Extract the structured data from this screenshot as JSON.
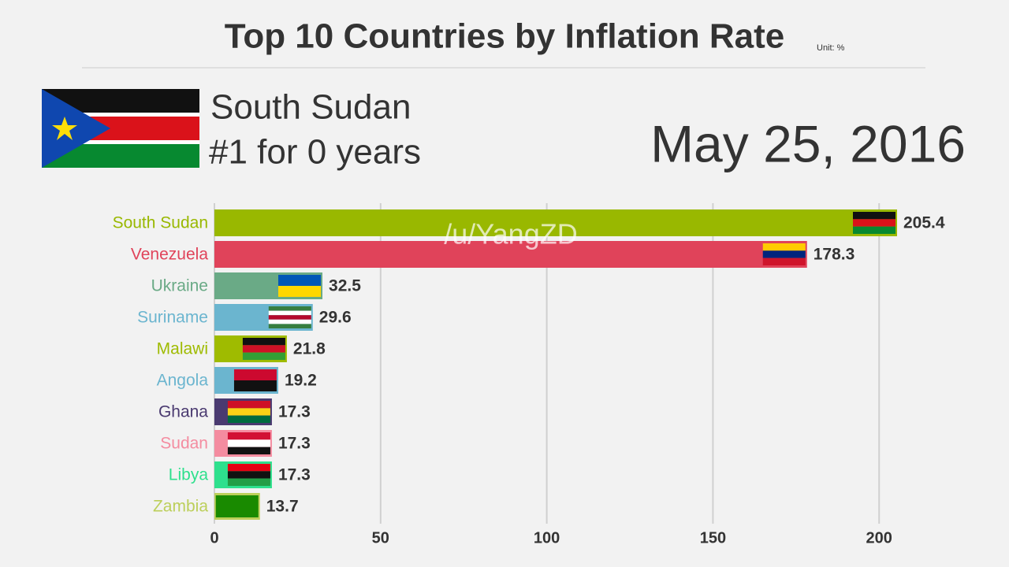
{
  "title": "Top 10 Countries by Inflation Rate",
  "unit": "Unit: %",
  "leader": {
    "name": "South Sudan",
    "streak": "#1 for 0 years"
  },
  "date": "May 25, 2016",
  "watermark": "/u/YangZD",
  "chart_data": {
    "type": "bar",
    "orientation": "horizontal",
    "categories": [
      "South Sudan",
      "Venezuela",
      "Ukraine",
      "Suriname",
      "Malawi",
      "Angola",
      "Ghana",
      "Sudan",
      "Libya",
      "Zambia"
    ],
    "values": [
      205.4,
      178.3,
      32.5,
      29.6,
      21.8,
      19.2,
      17.3,
      17.3,
      17.3,
      13.7
    ],
    "colors": [
      "#99b800",
      "#e0435a",
      "#6aaa86",
      "#6bb5cf",
      "#9fbb00",
      "#6bb5cf",
      "#4a3a70",
      "#f48ca0",
      "#2ee08d",
      "#bccf5a"
    ],
    "xlim": [
      0,
      205.4
    ],
    "xticks": [
      0,
      50,
      100,
      150,
      200
    ],
    "grid": true
  }
}
